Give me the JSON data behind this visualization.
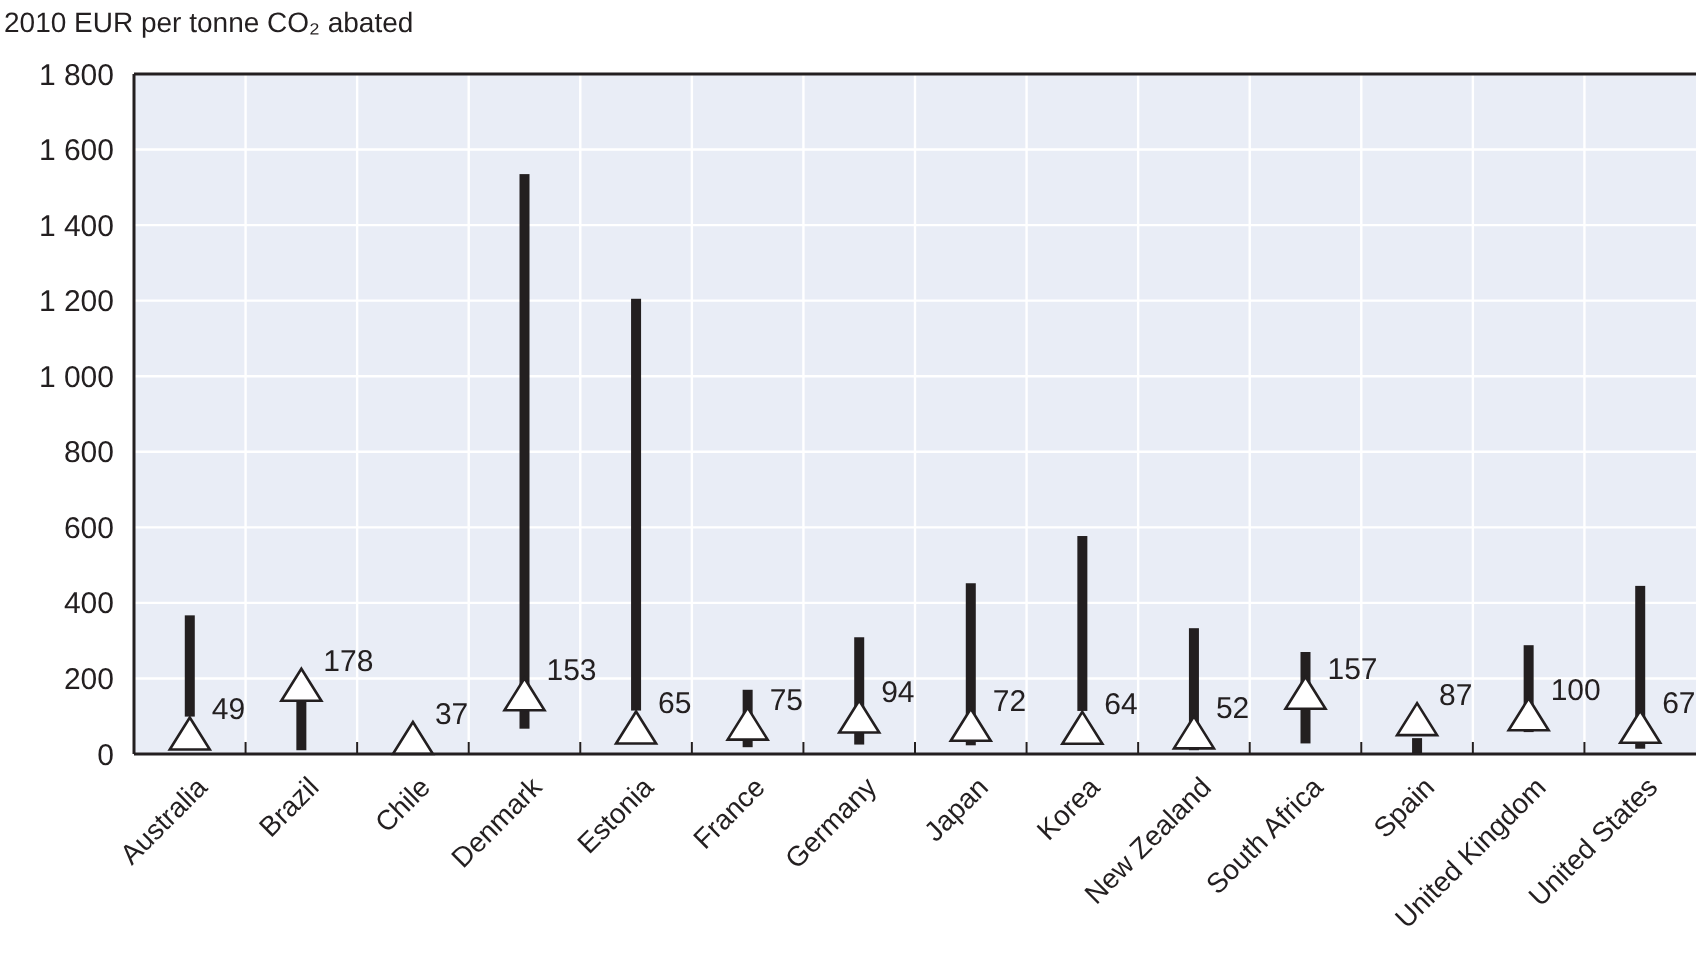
{
  "chart_data": {
    "type": "bar",
    "ylabel": "2010 EUR per tonne CO₂ abated",
    "categories": [
      "Australia",
      "Brazil",
      "Chile",
      "Denmark",
      "Estonia",
      "France",
      "Germany",
      "Japan",
      "Korea",
      "New Zealand",
      "South Africa",
      "Spain",
      "United Kingdom",
      "United States"
    ],
    "ylim": [
      0,
      1800
    ],
    "yticks": [
      0,
      200,
      400,
      600,
      800,
      {
        "value": 1000,
        "label": "1 000"
      },
      {
        "value": 1200,
        "label": "1 200"
      },
      {
        "value": 1400,
        "label": "1 400"
      },
      {
        "value": 1600,
        "label": "1 600"
      },
      {
        "value": 1800,
        "label": "1 800"
      }
    ],
    "grid": true,
    "series": [
      {
        "type": "bar",
        "color": "#231f20",
        "base": [
          99,
          10,
          null,
          67,
          115,
          18,
          25,
          23,
          114,
          10,
          28,
          2,
          58,
          14
        ],
        "values": [
          268,
          128,
          null,
          1468,
          1090,
          152,
          284,
          429,
          463,
          323,
          242,
          40,
          230,
          431
        ]
      },
      {
        "type": "scatter",
        "color": "#ffffff",
        "marker": "triangle",
        "values": [
          49,
          178,
          37,
          153,
          65,
          75,
          94,
          72,
          64,
          52,
          157,
          87,
          100,
          67
        ],
        "value_labels": [
          "49",
          "178",
          "37",
          "153",
          "65",
          "75",
          "94",
          "72",
          "64",
          "52",
          "157",
          "87",
          "100",
          "67"
        ]
      }
    ]
  }
}
